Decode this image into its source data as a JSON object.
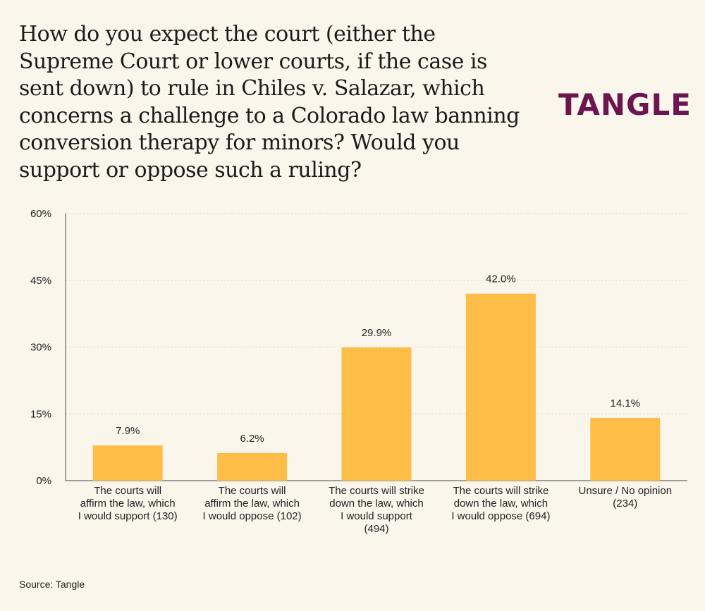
{
  "chart_data": {
    "type": "bar",
    "title": "How do you expect the court (either the Supreme Court or lower courts, if the case is sent down) to rule in Chiles v. Salazar, which concerns a challenge to a Colorado law banning conversion therapy for minors? Would you support or oppose such a ruling?",
    "categories": [
      [
        "The courts will",
        "affirm the law, which",
        "I would support (130)"
      ],
      [
        "The courts will",
        "affirm the law, which",
        "I would oppose (102)"
      ],
      [
        "The courts will strike",
        "down the law, which",
        "I would support",
        "(494)"
      ],
      [
        "The courts will strike",
        "down the law, which",
        "I would oppose (694)"
      ],
      [
        "Unsure / No opinion",
        "(234)"
      ]
    ],
    "values": [
      7.9,
      6.2,
      29.9,
      42.0,
      14.1
    ],
    "value_labels": [
      "7.9%",
      "6.2%",
      "29.9%",
      "42.0%",
      "14.1%"
    ],
    "ylim": [
      0,
      60
    ],
    "yticks": [
      0,
      15,
      30,
      45,
      60
    ],
    "ytick_labels": [
      "0%",
      "15%",
      "30%",
      "45%",
      "60%"
    ],
    "xlabel": "",
    "ylabel": "",
    "bar_color": "#fdbd47",
    "grid": "horizontal dotted"
  },
  "brand": {
    "logo_text": "TANGLE",
    "logo_color": "#6c1650"
  },
  "footer": {
    "source": "Source: Tangle"
  }
}
